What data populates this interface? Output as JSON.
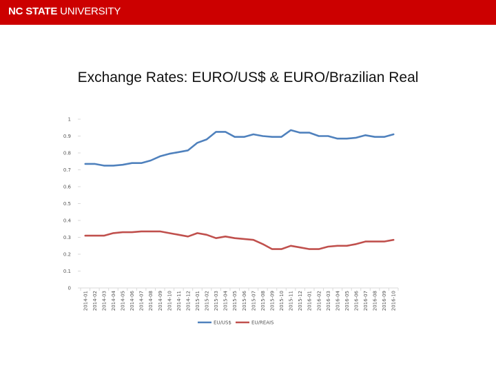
{
  "header": {
    "logo_bold": "NC STATE",
    "logo_rest": " UNIVERSITY",
    "bar_color": "#cc0000"
  },
  "chart_data": {
    "type": "line",
    "title": "Exchange Rates:  EURO/US$ & EURO/Brazilian Real",
    "categories": [
      "2014-01",
      "2014-02",
      "2014-03",
      "2014-04",
      "2014-05",
      "2014-06",
      "2014-07",
      "2014-08",
      "2014-09",
      "2014-10",
      "2014-11",
      "2014-12",
      "2015-01",
      "2015-02",
      "2015-03",
      "2015-04",
      "2015-05",
      "2015-06",
      "2015-07",
      "2015-08",
      "2015-09",
      "2015-10",
      "2015-11",
      "2015-12",
      "2016-01",
      "2016-02",
      "2016-03",
      "2016-04",
      "2016-05",
      "2016-06",
      "2016-07",
      "2016-08",
      "2016-09",
      "2016-10"
    ],
    "yticks": [
      "0",
      "0.1",
      "0.2",
      "0.3",
      "0.4",
      "0.5",
      "0.6",
      "0.7",
      "0.8",
      "0.9",
      "1"
    ],
    "ylim": [
      0,
      1
    ],
    "grid": false,
    "legend_position": "bottom",
    "series": [
      {
        "name": "EU/US$",
        "color": "#4f81bd",
        "values": [
          0.735,
          0.735,
          0.725,
          0.725,
          0.73,
          0.74,
          0.74,
          0.755,
          0.78,
          0.795,
          0.805,
          0.815,
          0.86,
          0.88,
          0.925,
          0.925,
          0.895,
          0.895,
          0.91,
          0.9,
          0.895,
          0.895,
          0.935,
          0.92,
          0.92,
          0.9,
          0.9,
          0.885,
          0.885,
          0.89,
          0.905,
          0.895,
          0.895,
          0.91
        ]
      },
      {
        "name": "EU/REAIS",
        "color": "#c0504d",
        "values": [
          0.31,
          0.31,
          0.31,
          0.325,
          0.33,
          0.33,
          0.335,
          0.335,
          0.335,
          0.325,
          0.315,
          0.305,
          0.325,
          0.315,
          0.295,
          0.305,
          0.295,
          0.29,
          0.285,
          0.26,
          0.23,
          0.23,
          0.25,
          0.24,
          0.23,
          0.23,
          0.245,
          0.25,
          0.25,
          0.26,
          0.275,
          0.275,
          0.275,
          0.285
        ]
      }
    ]
  }
}
